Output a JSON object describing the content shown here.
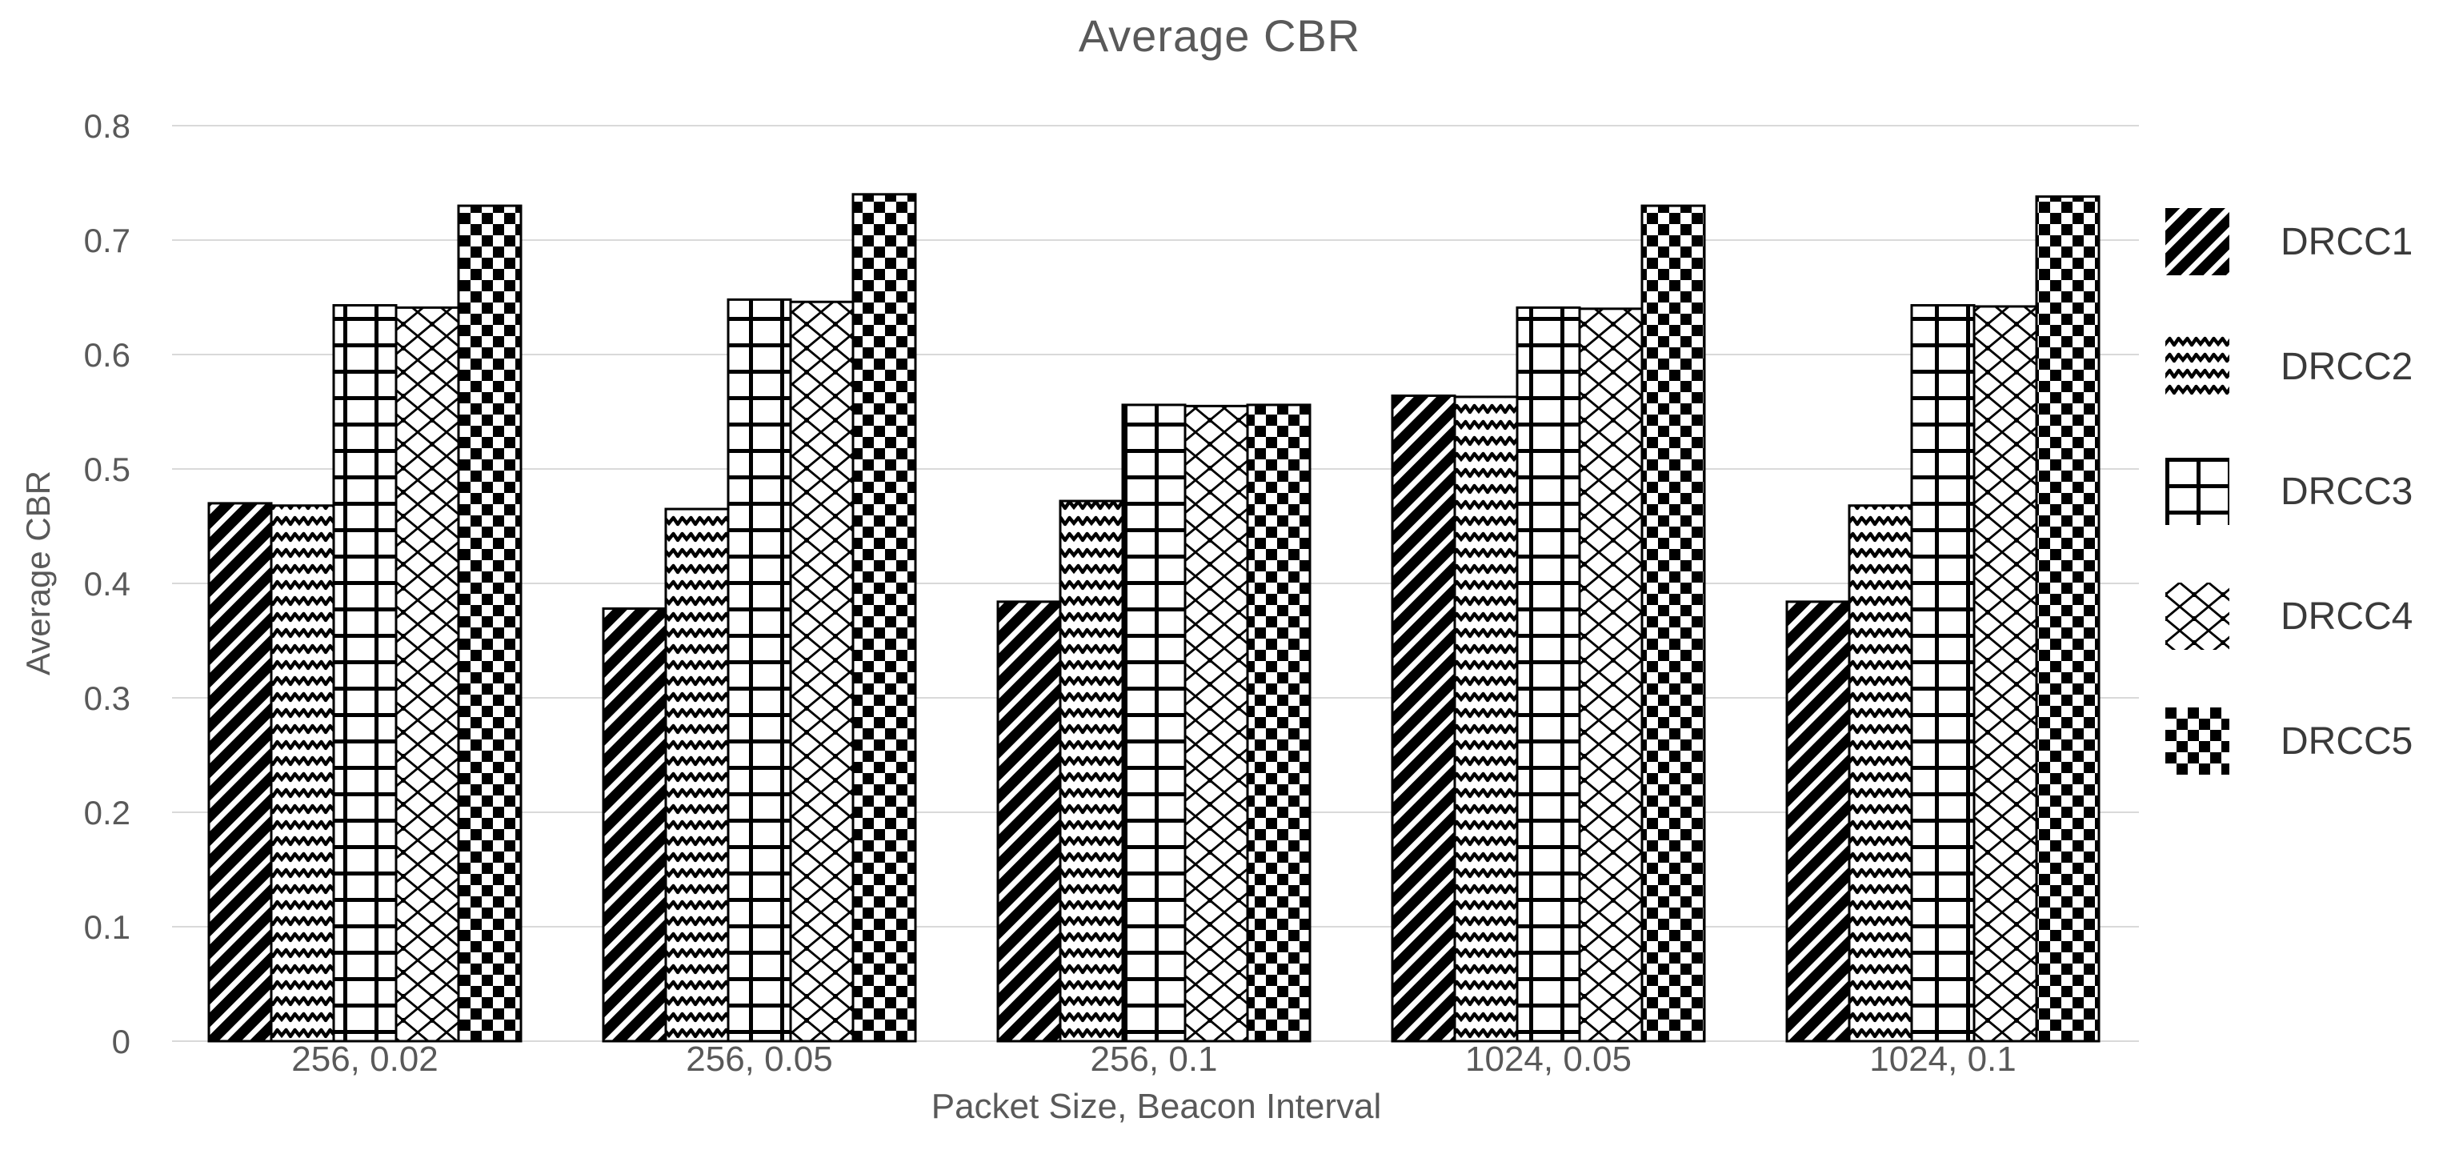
{
  "title": "Average CBR",
  "colors": {
    "text": "#595959",
    "legend_text": "#3a3a3a",
    "grid": "#d9d9d9",
    "pattern": "#000000",
    "background": "#ffffff"
  },
  "chart_data": {
    "type": "bar",
    "title": "Average CBR",
    "xlabel": "Packet Size, Beacon Interval",
    "ylabel": "Average CBR",
    "ylim": [
      0,
      0.8
    ],
    "ytick_step": 0.1,
    "yticks": [
      "0",
      "0.1",
      "0.2",
      "0.3",
      "0.4",
      "0.5",
      "0.6",
      "0.7",
      "0.8"
    ],
    "grid": true,
    "legend_position": "right",
    "categories": [
      "256, 0.02",
      "256, 0.05",
      "256, 0.1",
      "1024, 0.05",
      "1024, 0.1"
    ],
    "series": [
      {
        "name": "DRCC1",
        "pattern": "diagonal-stripes",
        "values": [
          0.47,
          0.378,
          0.384,
          0.564,
          0.384
        ]
      },
      {
        "name": "DRCC2",
        "pattern": "zigzag-waves",
        "values": [
          0.468,
          0.465,
          0.472,
          0.563,
          0.468
        ]
      },
      {
        "name": "DRCC3",
        "pattern": "large-grid",
        "values": [
          0.643,
          0.648,
          0.556,
          0.641,
          0.643
        ]
      },
      {
        "name": "DRCC4",
        "pattern": "diamond-lattice",
        "values": [
          0.641,
          0.646,
          0.555,
          0.64,
          0.642
        ]
      },
      {
        "name": "DRCC5",
        "pattern": "checkerboard",
        "values": [
          0.73,
          0.74,
          0.556,
          0.73,
          0.738
        ]
      }
    ]
  }
}
